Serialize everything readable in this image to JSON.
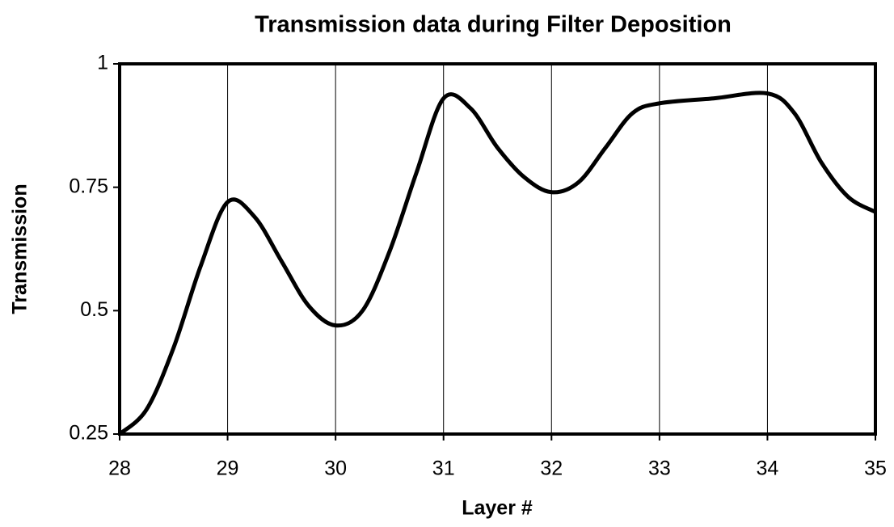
{
  "chart_data": {
    "type": "line",
    "title": "Transmission data during Filter Deposition",
    "x_label": "Layer #",
    "y_label": "Transmission",
    "series": [
      {
        "name": "Transmission",
        "color": "#000000",
        "x": [
          28,
          28.25,
          28.5,
          28.75,
          29,
          29.25,
          29.5,
          29.75,
          30,
          30.25,
          30.5,
          30.75,
          31,
          31.25,
          31.5,
          31.75,
          32,
          32.25,
          32.5,
          32.75,
          33,
          33.5,
          34,
          34.25,
          34.5,
          34.75,
          35
        ],
        "values": [
          0.25,
          0.3,
          0.425,
          0.59,
          0.72,
          0.69,
          0.6,
          0.51,
          0.47,
          0.5,
          0.62,
          0.78,
          0.93,
          0.91,
          0.83,
          0.77,
          0.74,
          0.76,
          0.83,
          0.9,
          0.92,
          0.93,
          0.94,
          0.9,
          0.8,
          0.73,
          0.7
        ]
      }
    ],
    "xlim": [
      28,
      35
    ],
    "xticks": [
      28,
      29,
      30,
      31,
      32,
      33,
      34,
      35
    ],
    "ylim": [
      0.25,
      1
    ],
    "yticks": [
      0.25,
      0.5,
      0.75,
      1
    ],
    "grid": "x"
  }
}
